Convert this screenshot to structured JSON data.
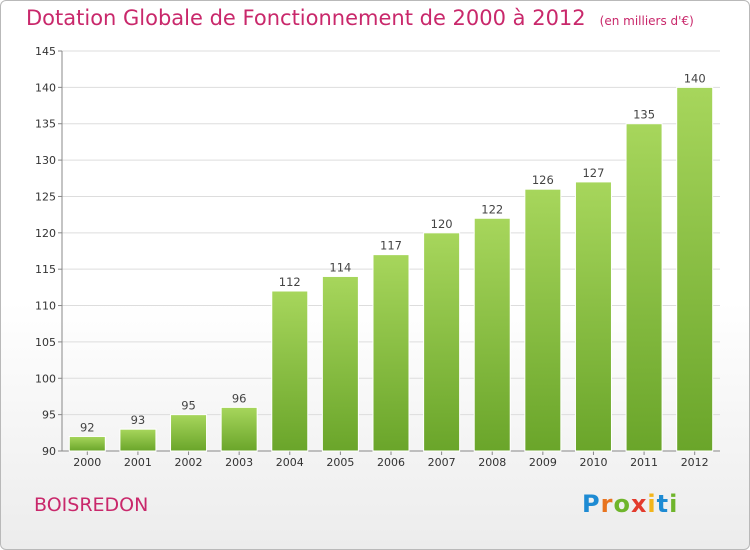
{
  "header": {
    "title": "Dotation Globale de Fonctionnement de 2000 à 2012",
    "unit": "(en milliers d'€)"
  },
  "footer": {
    "commune": "BOISREDON",
    "logo": {
      "letters": [
        "P",
        "r",
        "o",
        "x",
        "i",
        "t",
        "i"
      ],
      "colors": [
        "#1e8bd3",
        "#e8741f",
        "#6fb52c",
        "#e33b2d",
        "#f2b51c",
        "#1e8bd3",
        "#6fb52c"
      ]
    }
  },
  "colors": {
    "accent": "#c9286b",
    "bar_light": "#a7d65c",
    "bar_dark": "#6aa52a"
  },
  "chart_data": {
    "type": "bar",
    "title": "Dotation Globale de Fonctionnement de 2000 à 2012",
    "subtitle": "(en milliers d'€)",
    "categories": [
      "2000",
      "2001",
      "2002",
      "2003",
      "2004",
      "2005",
      "2006",
      "2007",
      "2008",
      "2009",
      "2010",
      "2011",
      "2012"
    ],
    "values": [
      92,
      93,
      95,
      96,
      112,
      114,
      117,
      120,
      122,
      126,
      127,
      135,
      140
    ],
    "ylim": [
      90,
      145
    ],
    "yticks": [
      90,
      95,
      100,
      105,
      110,
      115,
      120,
      125,
      130,
      135,
      140,
      145
    ],
    "grid": true,
    "legend": "none"
  }
}
